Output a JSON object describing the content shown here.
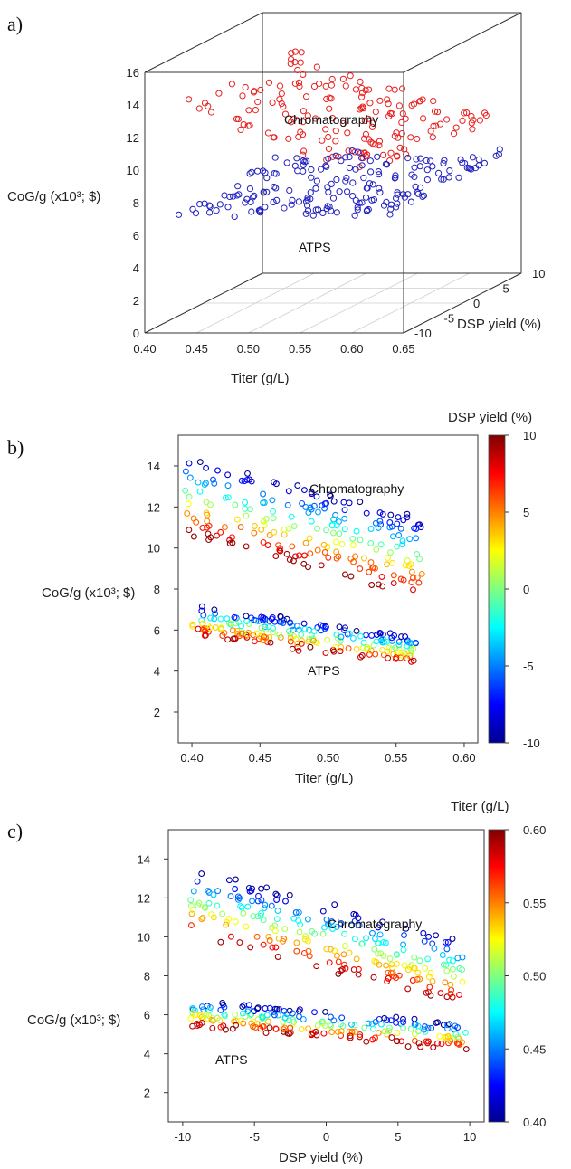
{
  "chart_data": [
    {
      "panel": "a)",
      "type": "scatter",
      "xlabel": "Titer (g/L)",
      "ylabel": "CoG/g (x10³; $)",
      "zlabel": "DSP yield (%)",
      "xlim": [
        0.4,
        0.65
      ],
      "ylim": [
        0,
        16
      ],
      "zlim": [
        -10,
        10
      ],
      "x_ticks": [
        "0.40",
        "0.45",
        "0.50",
        "0.55",
        "0.60",
        "0.65"
      ],
      "y_ticks": [
        "0",
        "2",
        "4",
        "6",
        "8",
        "10",
        "12",
        "14",
        "16"
      ],
      "z_ticks": [
        "-10",
        "-5",
        "0",
        "5",
        "10"
      ],
      "annotations": [
        "Chromatography",
        "ATPS"
      ],
      "series": [
        {
          "name": "Chromatography",
          "color": "#e8201e",
          "trend": [
            [
              0.43,
              13.7
            ],
            [
              0.48,
              12.5
            ],
            [
              0.53,
              11.4
            ],
            [
              0.58,
              10.6
            ],
            [
              0.63,
              10.0
            ]
          ],
          "spread": 0.5,
          "count": 170
        },
        {
          "name": "ATPS",
          "color": "#2020c0",
          "trend": [
            [
              0.43,
              7.5
            ],
            [
              0.5,
              7.3
            ],
            [
              0.58,
              7.1
            ],
            [
              0.64,
              7.5
            ]
          ],
          "spread": 0.6,
          "count": 190
        }
      ]
    },
    {
      "panel": "b)",
      "type": "scatter",
      "xlabel": "Titer (g/L)",
      "ylabel": "CoG/g (x10³; $)",
      "xlim": [
        0.39,
        0.61
      ],
      "ylim": [
        0.5,
        15.5
      ],
      "x_ticks": [
        "0.40",
        "0.45",
        "0.50",
        "0.55",
        "0.60"
      ],
      "y_ticks": [
        "2",
        "4",
        "6",
        "8",
        "10",
        "12",
        "14"
      ],
      "colorbar": {
        "title": "DSP yield (%)",
        "min": -10,
        "max": 10,
        "ticks": [
          "10",
          "5",
          "0",
          "-5",
          "-10"
        ]
      },
      "annotations": [
        "Chromatography",
        "ATPS"
      ],
      "series": [
        {
          "name": "Chromatography",
          "x_range": [
            0.395,
            0.57
          ],
          "y_start": 12.6,
          "y_end": 9.5,
          "yield_slope": -0.19,
          "count": 220
        },
        {
          "name": "ATPS",
          "x_range": [
            0.4,
            0.565
          ],
          "y_start": 6.5,
          "y_end": 5.0,
          "yield_slope": -0.07,
          "count": 220
        }
      ]
    },
    {
      "panel": "c)",
      "type": "scatter",
      "xlabel": "DSP yield (%)",
      "ylabel": "CoG/g (x10³; $)",
      "xlim": [
        -11,
        11
      ],
      "ylim": [
        0.5,
        15.5
      ],
      "x_ticks": [
        "-10",
        "-5",
        "0",
        "5",
        "10"
      ],
      "y_ticks": [
        "2",
        "4",
        "6",
        "8",
        "10",
        "12",
        "14"
      ],
      "colorbar": {
        "title": "Titer (g/L)",
        "min": 0.4,
        "max": 0.6,
        "ticks": [
          "0.60",
          "0.55",
          "0.50",
          "0.45",
          "0.40"
        ]
      },
      "annotations": [
        "Chromatography",
        "ATPS"
      ],
      "series": [
        {
          "name": "Chromatography",
          "x_range": [
            -9.5,
            9.5
          ],
          "y_start": 11.8,
          "y_end": 8.2,
          "titer_slope": -17,
          "count": 230
        },
        {
          "name": "ATPS",
          "x_range": [
            -9.5,
            9.8
          ],
          "y_start": 6.1,
          "y_end": 4.9,
          "titer_slope": -6.5,
          "count": 220
        }
      ]
    }
  ]
}
